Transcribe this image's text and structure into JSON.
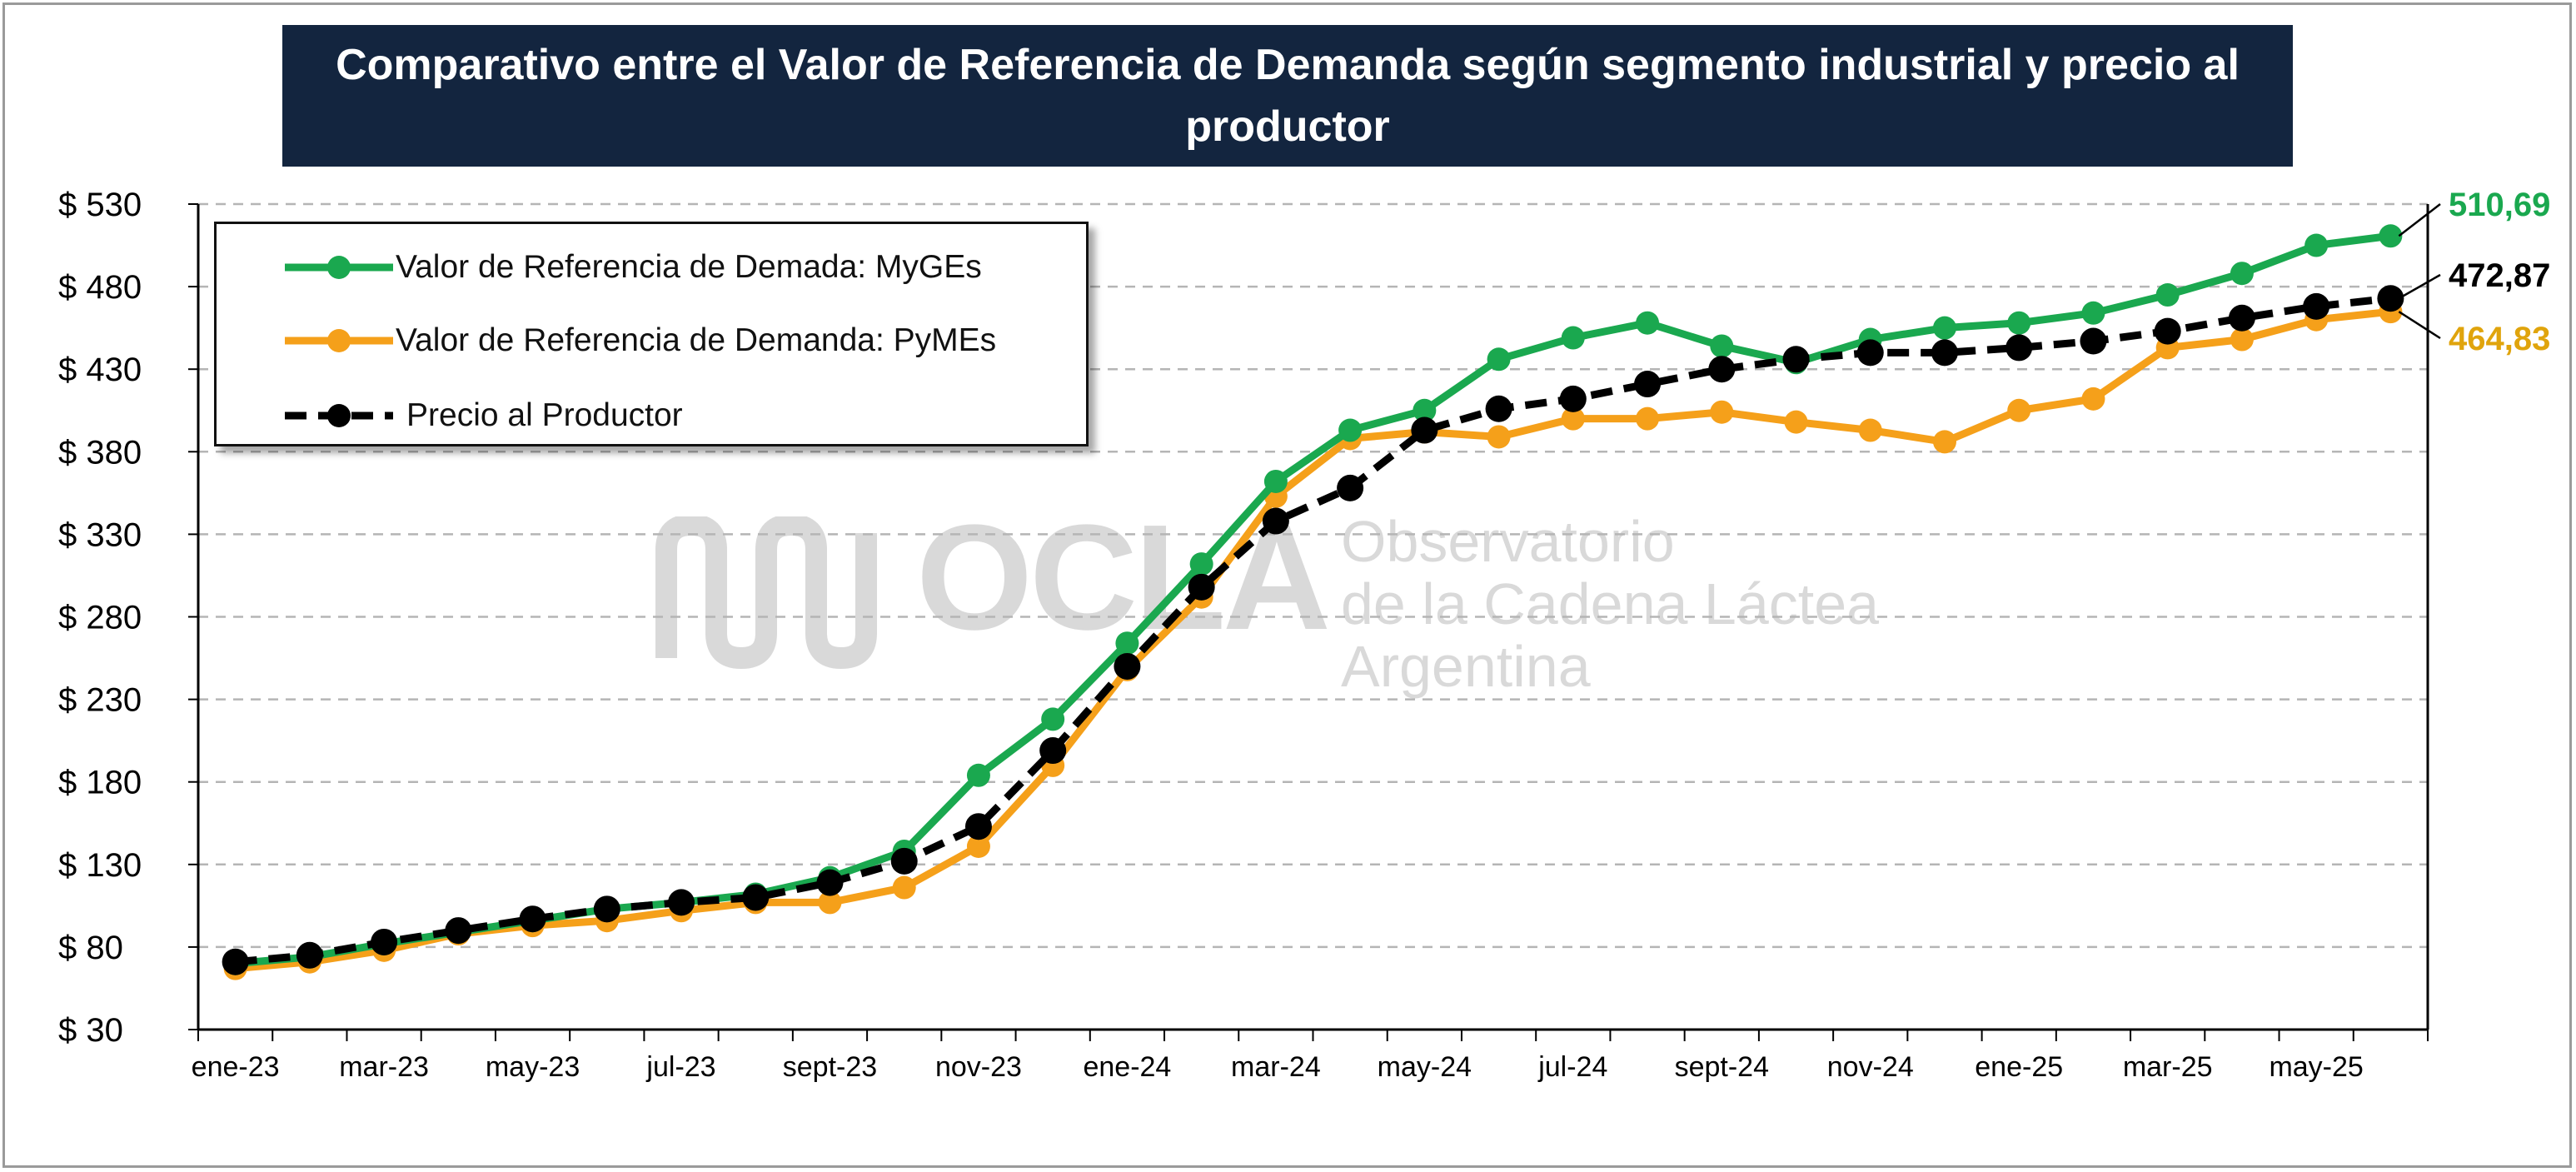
{
  "title": "Comparativo entre el Valor de Referencia de Demanda según segmento industrial y precio al productor",
  "watermark": {
    "logo_text": "OCLA",
    "line1": "Observatorio",
    "line2": "de la Cadena Láctea",
    "line3": "Argentina"
  },
  "legend": [
    {
      "label": "Valor de Referencia de Demada: MyGEs",
      "color": "#1aa84f",
      "dash": false
    },
    {
      "label": "Valor de Referencia de Demanda: PyMEs",
      "color": "#f5a01a",
      "dash": false
    },
    {
      "label": "Precio al Productor",
      "color": "#000000",
      "dash": true
    }
  ],
  "end_labels": {
    "myges": {
      "text": "510,69",
      "color": "#1aa84f"
    },
    "productor": {
      "text": "472,87",
      "color": "#000000"
    },
    "pymes": {
      "text": "464,83",
      "color": "#e0a40c"
    }
  },
  "chart_data": {
    "type": "line",
    "title": "Comparativo entre el Valor de Referencia de Demanda según segmento industrial y precio al productor",
    "xlabel": "",
    "ylabel": "",
    "ylim": [
      30,
      530
    ],
    "yticks": [
      30,
      80,
      130,
      180,
      230,
      280,
      330,
      380,
      430,
      480,
      530
    ],
    "ytick_labels": [
      "$ 30",
      "$ 80",
      "$ 130",
      "$ 180",
      "$ 230",
      "$ 280",
      "$ 330",
      "$ 380",
      "$ 430",
      "$ 480",
      "$ 530"
    ],
    "grid": true,
    "legend_position": "top-left",
    "x": [
      "ene-23",
      "feb-23",
      "mar-23",
      "abr-23",
      "may-23",
      "jun-23",
      "jul-23",
      "ago-23",
      "sept-23",
      "oct-23",
      "nov-23",
      "dic-23",
      "ene-24",
      "feb-24",
      "mar-24",
      "abr-24",
      "may-24",
      "jun-24",
      "jul-24",
      "ago-24",
      "sept-24",
      "oct-24",
      "nov-24",
      "dic-24",
      "ene-25",
      "feb-25",
      "mar-25",
      "abr-25",
      "may-25",
      "jun-25"
    ],
    "xtick_labels": [
      "ene-23",
      "mar-23",
      "may-23",
      "jul-23",
      "sept-23",
      "nov-23",
      "ene-24",
      "mar-24",
      "may-24",
      "jul-24",
      "sept-24",
      "nov-24",
      "ene-25",
      "mar-25",
      "may-25"
    ],
    "series": [
      {
        "name": "Valor de Referencia de Demada: MyGEs",
        "color": "#1aa84f",
        "dashed": false,
        "values": [
          70,
          74,
          82,
          89,
          96,
          103,
          107,
          112,
          122,
          138,
          184,
          218,
          264,
          312,
          362,
          393,
          405,
          436,
          449,
          458,
          444,
          434,
          448,
          455,
          458,
          464,
          475,
          488,
          505,
          510.69
        ]
      },
      {
        "name": "Valor de Referencia de Demanda: PyMEs",
        "color": "#f5a01a",
        "dashed": false,
        "values": [
          67,
          71,
          78,
          88,
          93,
          96,
          102,
          107,
          107,
          116,
          141,
          190,
          248,
          292,
          353,
          388,
          392,
          389,
          400,
          400,
          404,
          398,
          393,
          386,
          405,
          412,
          443,
          448,
          460,
          464.83
        ]
      },
      {
        "name": "Precio al Productor",
        "color": "#000000",
        "dashed": true,
        "values": [
          71,
          75,
          83,
          90,
          97,
          103,
          107,
          110,
          119,
          132,
          153,
          199,
          250,
          298,
          338,
          358,
          393,
          406,
          412,
          421,
          430,
          436,
          440,
          440,
          443,
          447,
          453,
          461,
          468,
          472.87
        ]
      }
    ]
  }
}
